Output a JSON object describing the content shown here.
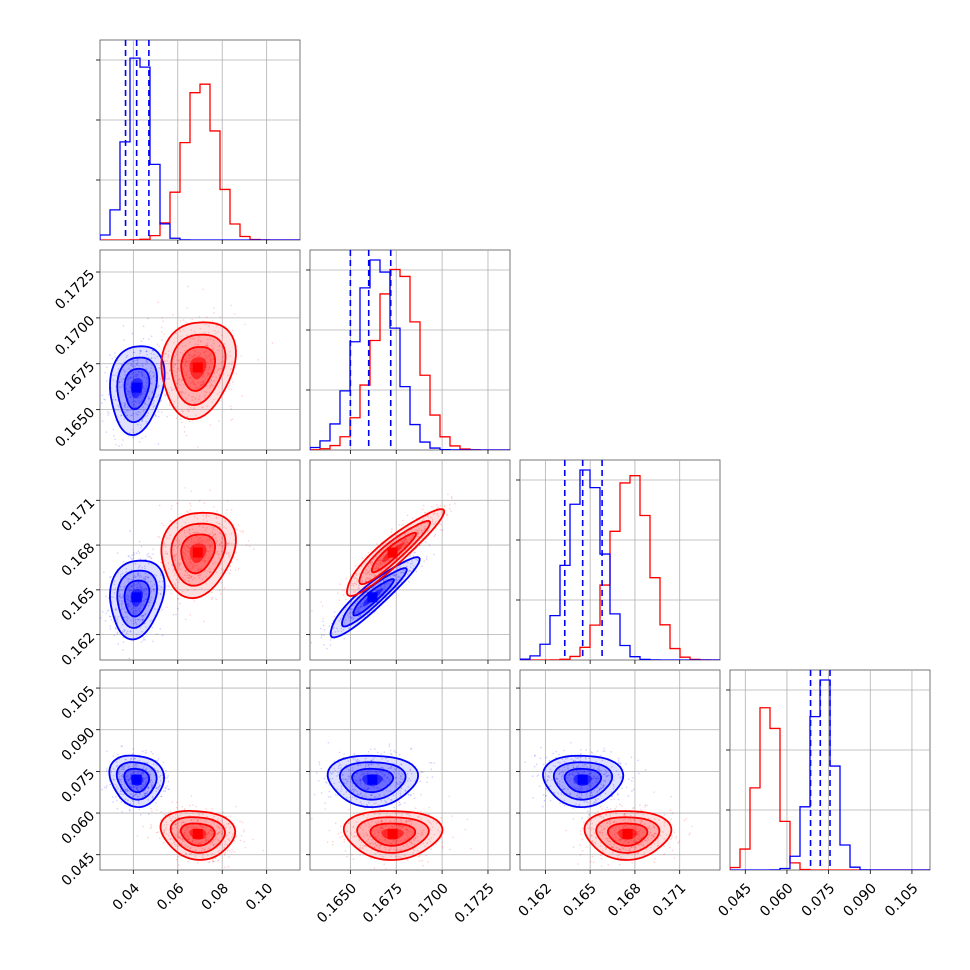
{
  "colors": {
    "series_a": "#0000ff",
    "series_b": "#ff0000",
    "grid": "#b0b0b0",
    "frame": "#555555"
  },
  "chart_data": {
    "type": "corner",
    "grid": true,
    "dimensions": [
      {
        "range": [
          0.025,
          0.115
        ],
        "ticks": [
          0.04,
          0.06,
          0.08,
          0.1
        ],
        "tick_labels": [
          "0.04",
          "0.06",
          "0.08",
          "0.10"
        ]
      },
      {
        "range": [
          0.1628,
          0.1737
        ],
        "ticks": [
          0.165,
          0.1675,
          0.17,
          0.1725
        ],
        "tick_labels": [
          "0.1650",
          "0.1675",
          "0.1700",
          "0.1725"
        ]
      },
      {
        "range": [
          0.1603,
          0.1737
        ],
        "ticks": [
          0.162,
          0.165,
          0.168,
          0.171
        ],
        "tick_labels": [
          "0.162",
          "0.165",
          "0.168",
          "0.171"
        ]
      },
      {
        "range": [
          0.0395,
          0.1115
        ],
        "ticks": [
          0.045,
          0.06,
          0.075,
          0.09,
          0.105
        ],
        "tick_labels": [
          "0.045",
          "0.060",
          "0.075",
          "0.090",
          "0.105"
        ]
      }
    ],
    "series": [
      {
        "color": "#0000ff",
        "mean": [
          0.0415,
          0.1662,
          0.1645,
          0.072
        ],
        "std": [
          0.0055,
          0.0011,
          0.0012,
          0.0042
        ],
        "quantiles": [
          [
            0.0365,
            0.0415,
            0.047
          ],
          [
            0.165,
            0.166,
            0.1672
          ],
          [
            0.1633,
            0.1645,
            0.1658
          ],
          [
            0.0685,
            0.072,
            0.0755
          ]
        ],
        "hist_peak_relative": [
          1.0,
          1.0,
          1.0,
          1.0
        ]
      },
      {
        "color": "#ff0000",
        "mean": [
          0.069,
          0.1673,
          0.1675,
          0.0525
        ],
        "std": [
          0.0075,
          0.0012,
          0.0013,
          0.004
        ],
        "hist_peak_relative": [
          0.82,
          0.95,
          0.97,
          0.88
        ]
      }
    ],
    "correlations": [
      {
        "pair": [
          1,
          0
        ],
        "value": 0.15
      },
      {
        "pair": [
          2,
          0
        ],
        "value": 0.15
      },
      {
        "pair": [
          2,
          1
        ],
        "value": 0.92
      },
      {
        "pair": [
          3,
          0
        ],
        "value": -0.1
      },
      {
        "pair": [
          3,
          1
        ],
        "value": 0.0
      },
      {
        "pair": [
          3,
          2
        ],
        "value": 0.0
      }
    ]
  }
}
